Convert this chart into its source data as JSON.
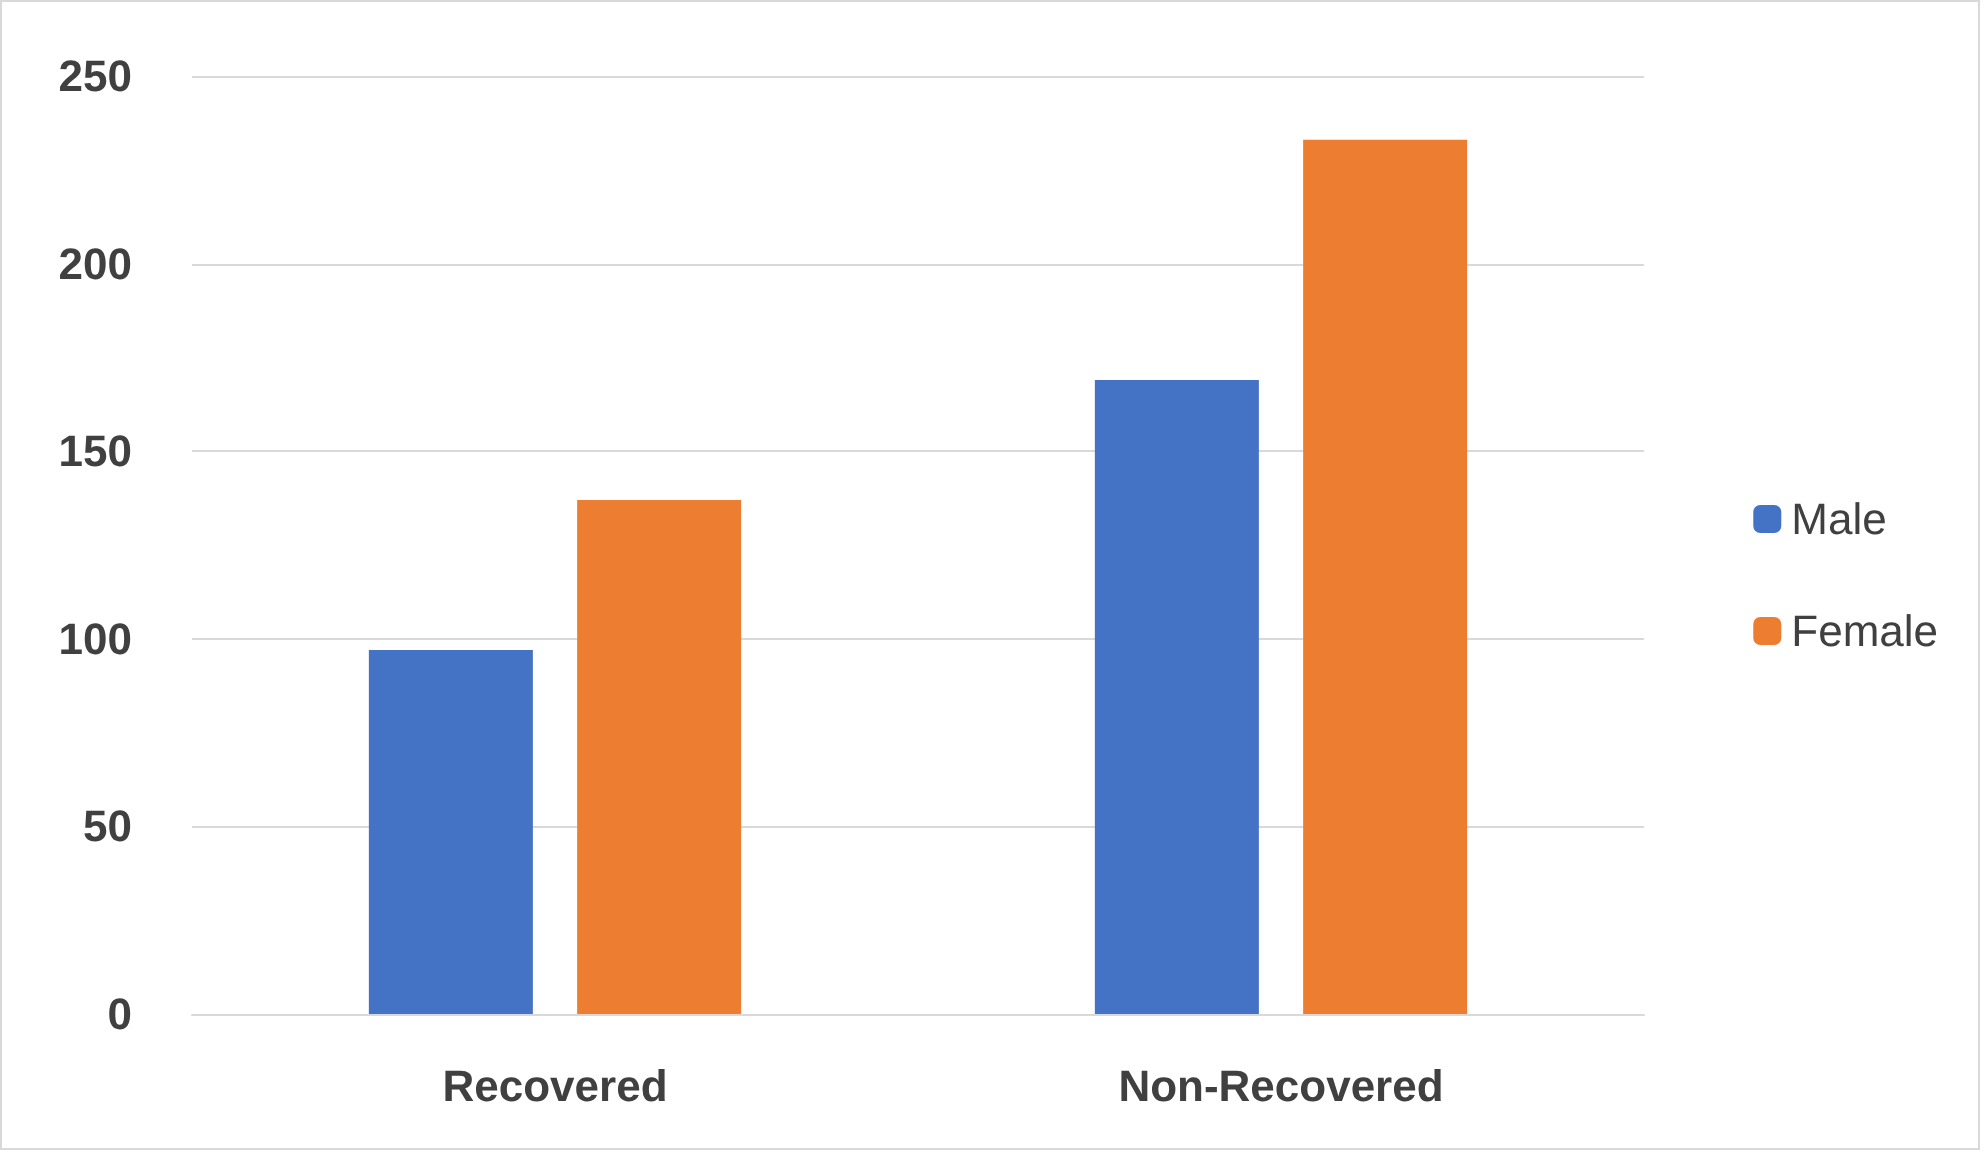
{
  "chart_data": {
    "type": "bar",
    "categories": [
      "Recovered",
      "Non-Recovered"
    ],
    "series": [
      {
        "name": "Male",
        "color": "#4472c4",
        "values": [
          97,
          169
        ]
      },
      {
        "name": "Female",
        "color": "#ed7d31",
        "values": [
          137,
          233
        ]
      }
    ],
    "ylim": [
      0,
      250
    ],
    "yticks": [
      0,
      50,
      100,
      150,
      200,
      250
    ],
    "grid": "y",
    "legend": "right"
  }
}
